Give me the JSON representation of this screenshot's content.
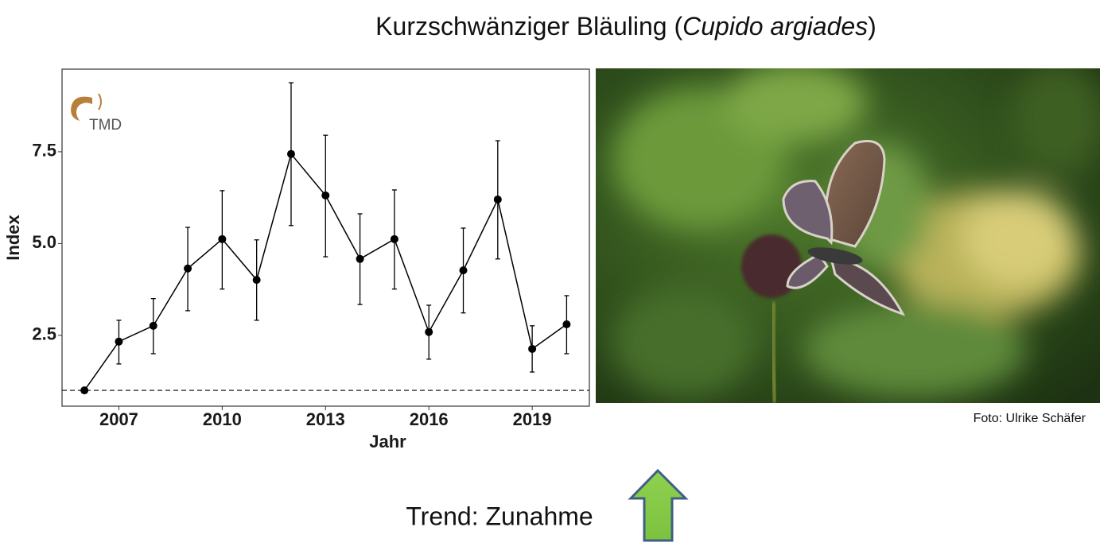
{
  "title_parts": [
    "Kurzschwänziger Bläuling (",
    "Cupido argiades",
    ")"
  ],
  "chart_data": {
    "type": "line",
    "x_label": "Jahr",
    "y_label": "Index",
    "logo_text": "TMD",
    "x": [
      2006,
      2007,
      2008,
      2009,
      2010,
      2011,
      2012,
      2013,
      2014,
      2015,
      2016,
      2017,
      2018,
      2019,
      2020
    ],
    "values": [
      1.0,
      2.33,
      2.76,
      4.32,
      5.12,
      4.01,
      7.44,
      6.31,
      4.58,
      5.12,
      2.59,
      4.27,
      6.2,
      2.13,
      2.8
    ],
    "lower": [
      null,
      1.72,
      2.0,
      3.17,
      3.76,
      2.91,
      5.49,
      4.64,
      3.34,
      3.76,
      1.85,
      3.11,
      4.58,
      1.5,
      2.0
    ],
    "upper": [
      null,
      2.91,
      3.5,
      5.44,
      6.44,
      5.1,
      9.38,
      7.95,
      5.81,
      6.46,
      3.32,
      5.42,
      7.8,
      2.76,
      3.58
    ],
    "color": "#000000",
    "reference_line": 1,
    "xlim": [
      2005.35,
      2020.66
    ],
    "xticks": [
      2007,
      2010,
      2013,
      2016,
      2019
    ],
    "ylim": [
      0.57,
      9.75
    ],
    "yticks": [
      2.5,
      {
        "value": 5,
        "label": "5.0"
      },
      7.5
    ],
    "grid": false
  },
  "photo_credit": "Foto: Ulrike Schäfer",
  "trend": "Trend: Zunahme"
}
